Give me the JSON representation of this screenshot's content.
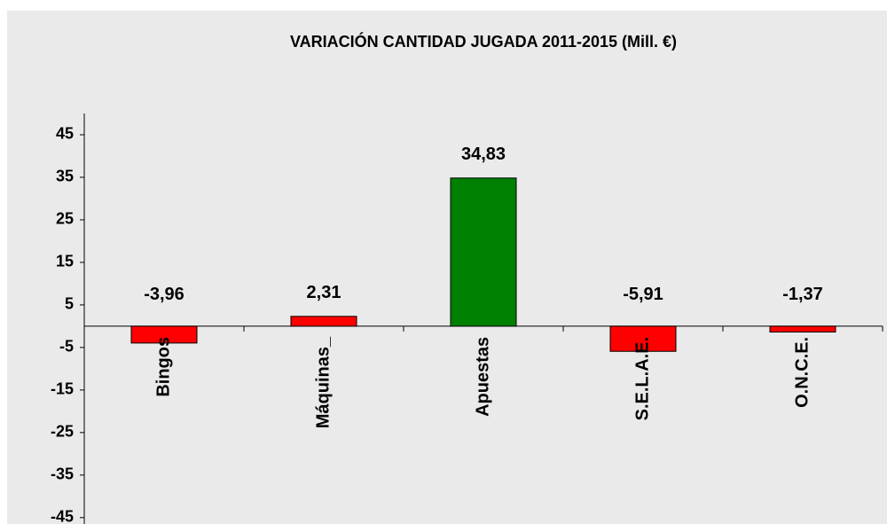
{
  "chart_data": {
    "type": "bar",
    "title": "VARIACIÓN CANTIDAD JUGADA  2011-2015 (Mill. €)",
    "categories": [
      "Bingos",
      "Máquinas_",
      "Apuestas",
      "S.E.L.A.E.",
      "O.N.C.E."
    ],
    "values": [
      -3.96,
      2.31,
      34.83,
      -5.91,
      -1.37
    ],
    "value_labels": [
      "-3,96",
      "2,31",
      "34,83",
      "-5,91",
      "-1,37"
    ],
    "colors": [
      "#ff0000",
      "#ff0000",
      "#008000",
      "#ff0000",
      "#ff0000"
    ],
    "ylim": [
      -46.5,
      50
    ],
    "yticks": [
      -45,
      -35,
      -25,
      -15,
      -5,
      5,
      15,
      25,
      35,
      45
    ],
    "grid": false
  }
}
